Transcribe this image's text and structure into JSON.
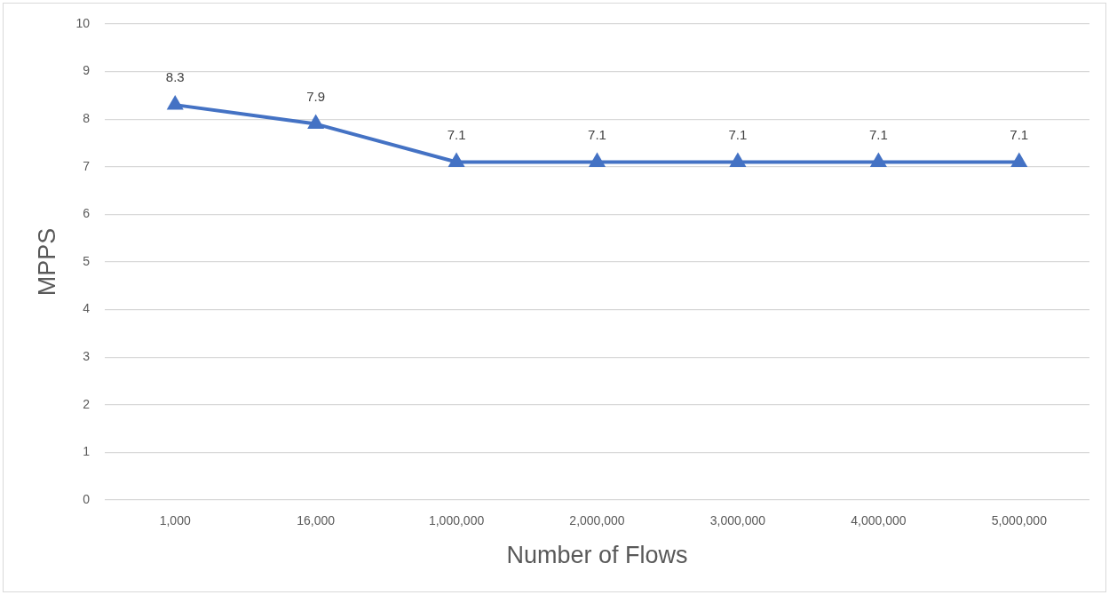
{
  "chart_data": {
    "type": "line",
    "xlabel": "Number of Flows",
    "ylabel": "MPPS",
    "categories": [
      "1,000",
      "16,000",
      "1,000,000",
      "2,000,000",
      "3,000,000",
      "4,000,000",
      "5,000,000"
    ],
    "series": [
      {
        "color": "#4472c4",
        "values": [
          8.3,
          7.9,
          7.1,
          7.1,
          7.1,
          7.1,
          7.1
        ]
      }
    ],
    "ylim": [
      0,
      10
    ],
    "yticks": [
      0,
      1,
      2,
      3,
      4,
      5,
      6,
      7,
      8,
      9,
      10
    ],
    "grid": "y",
    "marker": "triangle",
    "data_labels": true
  }
}
